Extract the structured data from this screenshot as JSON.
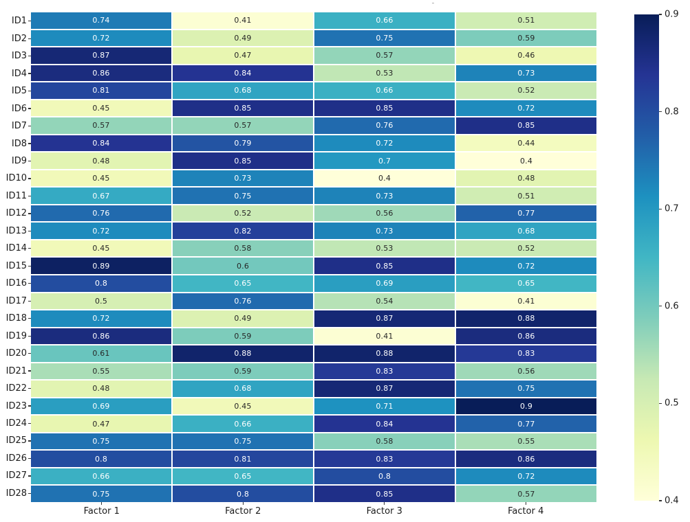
{
  "chart_data": {
    "type": "heatmap",
    "title": "",
    "xlabel": "",
    "ylabel": "",
    "rows": [
      "ID1",
      "ID2",
      "ID3",
      "ID4",
      "ID5",
      "ID6",
      "ID7",
      "ID8",
      "ID9",
      "ID10",
      "ID11",
      "ID12",
      "ID13",
      "ID14",
      "ID15",
      "ID16",
      "ID17",
      "ID18",
      "ID19",
      "ID20",
      "ID21",
      "ID22",
      "ID23",
      "ID24",
      "ID25",
      "ID26",
      "ID27",
      "ID28"
    ],
    "columns": [
      "Factor 1",
      "Factor 2",
      "Factor 3",
      "Factor 4"
    ],
    "values": [
      [
        0.74,
        0.41,
        0.66,
        0.51
      ],
      [
        0.72,
        0.49,
        0.75,
        0.59
      ],
      [
        0.87,
        0.47,
        0.57,
        0.46
      ],
      [
        0.86,
        0.84,
        0.53,
        0.73
      ],
      [
        0.81,
        0.68,
        0.66,
        0.52
      ],
      [
        0.45,
        0.85,
        0.85,
        0.72
      ],
      [
        0.57,
        0.57,
        0.76,
        0.85
      ],
      [
        0.84,
        0.79,
        0.72,
        0.44
      ],
      [
        0.48,
        0.85,
        0.7,
        0.4
      ],
      [
        0.45,
        0.73,
        0.4,
        0.48
      ],
      [
        0.67,
        0.75,
        0.73,
        0.51
      ],
      [
        0.76,
        0.52,
        0.56,
        0.77
      ],
      [
        0.72,
        0.82,
        0.73,
        0.68
      ],
      [
        0.45,
        0.58,
        0.53,
        0.52
      ],
      [
        0.89,
        0.6,
        0.85,
        0.72
      ],
      [
        0.8,
        0.65,
        0.69,
        0.65
      ],
      [
        0.5,
        0.76,
        0.54,
        0.41
      ],
      [
        0.72,
        0.49,
        0.87,
        0.88
      ],
      [
        0.86,
        0.59,
        0.41,
        0.86
      ],
      [
        0.61,
        0.88,
        0.88,
        0.83
      ],
      [
        0.55,
        0.59,
        0.83,
        0.56
      ],
      [
        0.48,
        0.68,
        0.87,
        0.75
      ],
      [
        0.69,
        0.45,
        0.71,
        0.9
      ],
      [
        0.47,
        0.66,
        0.84,
        0.77
      ],
      [
        0.75,
        0.75,
        0.58,
        0.55
      ],
      [
        0.8,
        0.81,
        0.83,
        0.86
      ],
      [
        0.66,
        0.65,
        0.8,
        0.72
      ],
      [
        0.75,
        0.8,
        0.85,
        0.57
      ]
    ],
    "annotated": true,
    "grid_lines": "white",
    "colormap": "YlGnBu",
    "colormap_stops": [
      "#ffffd9",
      "#edf8b1",
      "#c7e9b4",
      "#7fcdbb",
      "#41b6c4",
      "#1d91c0",
      "#225ea8",
      "#253494",
      "#081d58"
    ],
    "vmin": 0.4,
    "vmax": 0.9,
    "colorbar": {
      "position": "right",
      "ticks": [
        0.9,
        0.8,
        0.7,
        0.6,
        0.5,
        0.4
      ],
      "tick_labels": [
        "0.9",
        "0.8",
        "0.7",
        "0.6",
        "0.5",
        "0.4"
      ]
    },
    "annotation_text_colors": {
      "dark_cells": "#ffffff",
      "light_cells": "#262626"
    }
  }
}
